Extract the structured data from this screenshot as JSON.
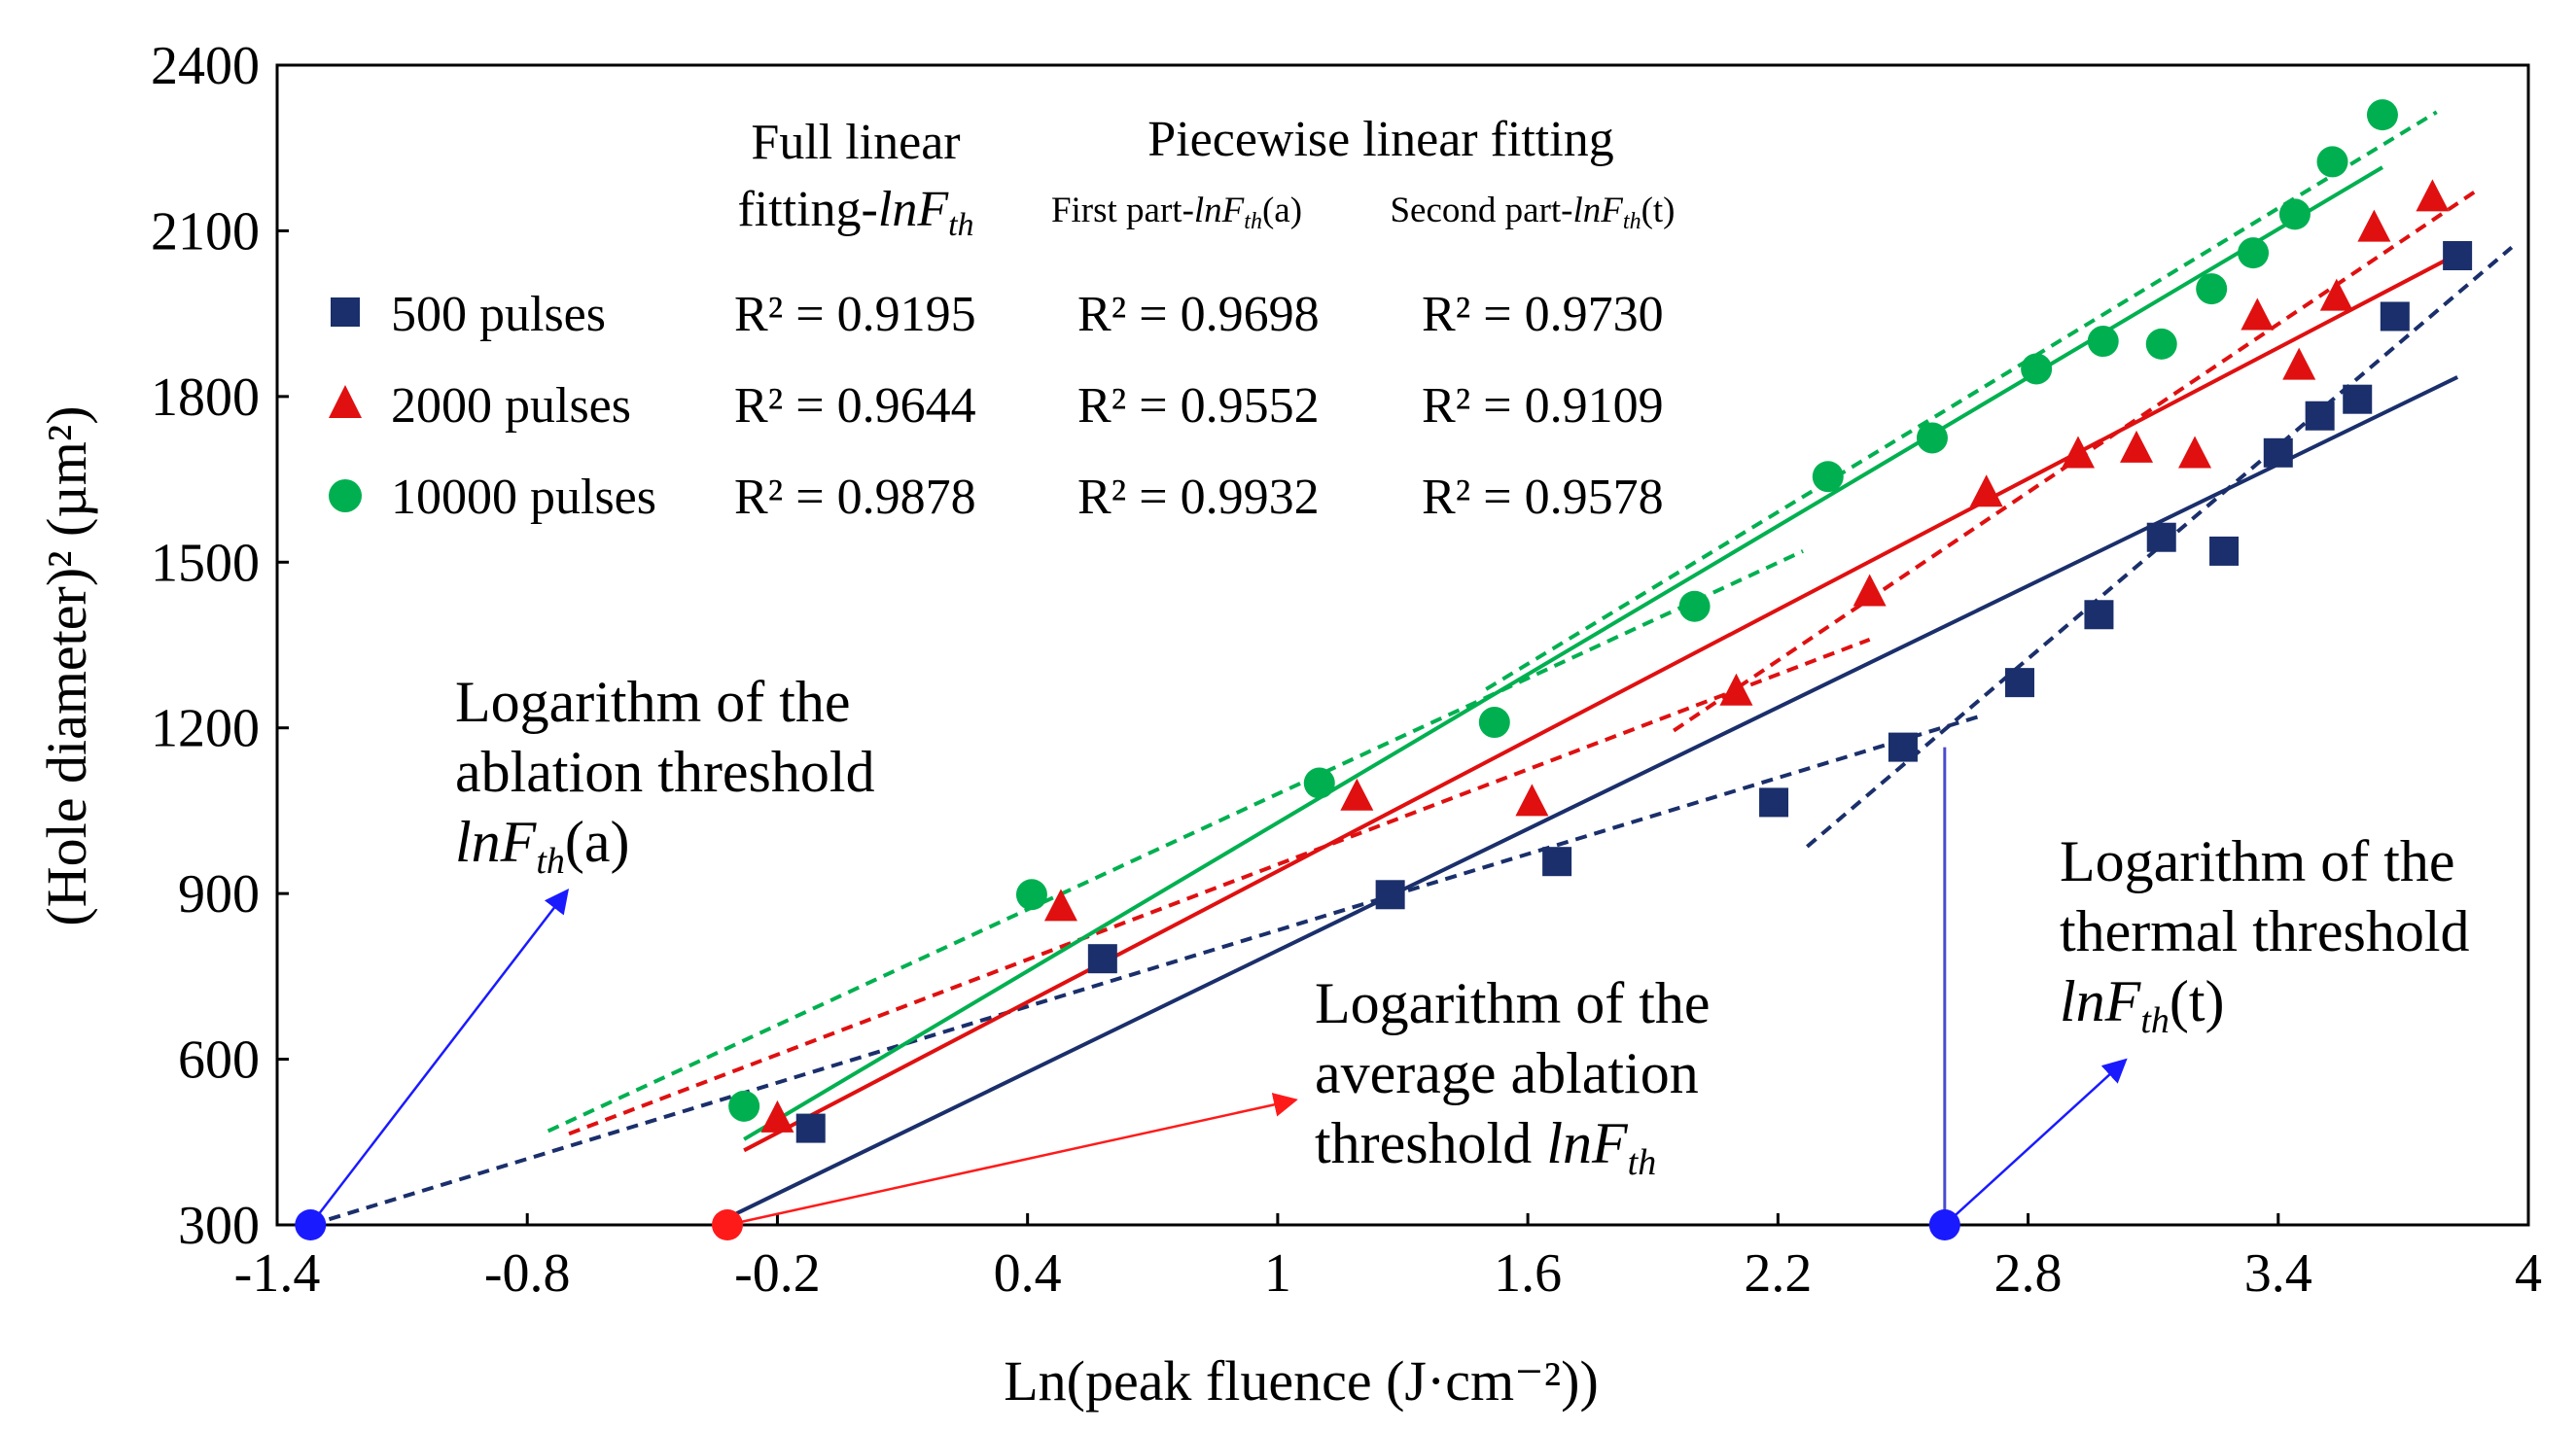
{
  "chart_data": {
    "type": "scatter",
    "title": "",
    "xlabel": "Ln(peak fluence (J·cm⁻²))",
    "ylabel": "(Hole diameter)² (µm²)",
    "xlim": [
      -1.4,
      4.0
    ],
    "ylim": [
      300,
      2400
    ],
    "xticks": [
      "-1.4",
      "-0.8",
      "-0.2",
      "0.4",
      "1",
      "1.6",
      "2.2",
      "2.8",
      "3.4",
      "4"
    ],
    "yticks": [
      "300",
      "600",
      "900",
      "1200",
      "1500",
      "1800",
      "2100",
      "2400"
    ],
    "grid": false,
    "header": {
      "col1_line1": "Full linear",
      "col1_line2_prefix": "fitting-",
      "col1_line2_sym": "lnF",
      "col1_line2_sub": "th",
      "col2": "Piecewise linear fitting",
      "col2a_prefix": "First part-",
      "col2a_sym": "lnF",
      "col2a_sub": "th",
      "col2a_suffix": "(a)",
      "col2b_prefix": "Second part-",
      "col2b_sym": "lnF",
      "col2b_sub": "th",
      "col2b_suffix": "(t)"
    },
    "series": [
      {
        "name": "500 pulses",
        "marker": "square",
        "color": "#1a2f6b",
        "r2_full": "R² = 0.9195",
        "r2_first": "R² = 0.9698",
        "r2_second": "R² = 0.9730",
        "x": [
          -0.12,
          0.58,
          1.27,
          1.67,
          2.19,
          2.5,
          2.78,
          2.97,
          3.12,
          3.27,
          3.4,
          3.5,
          3.59,
          3.68,
          3.83
        ],
        "y": [
          475,
          782,
          898,
          958,
          1065,
          1165,
          1282,
          1405,
          1545,
          1520,
          1698,
          1765,
          1795,
          1945,
          2055
        ],
        "fit_full": [
          [
            -0.3,
            320
          ],
          [
            3.83,
            1835
          ]
        ],
        "fit_first": [
          [
            -1.32,
            300
          ],
          [
            2.68,
            1220
          ]
        ],
        "fit_second": [
          [
            2.27,
            985
          ],
          [
            3.96,
            2070
          ]
        ]
      },
      {
        "name": "2000 pulses",
        "marker": "triangle",
        "color": "#e01010",
        "r2_full": "R² = 0.9644",
        "r2_first": "R² = 0.9552",
        "r2_second": "R² = 0.9109",
        "x": [
          -0.2,
          0.48,
          1.19,
          1.61,
          2.1,
          2.42,
          2.7,
          2.92,
          3.06,
          3.2,
          3.35,
          3.45,
          3.54,
          3.63,
          3.77
        ],
        "y": [
          492,
          875,
          1075,
          1065,
          1265,
          1445,
          1625,
          1695,
          1705,
          1695,
          1945,
          1855,
          1980,
          2105,
          2160
        ],
        "fit_full": [
          [
            -0.28,
            435
          ],
          [
            3.81,
            2050
          ]
        ],
        "fit_first": [
          [
            -0.7,
            465
          ],
          [
            2.42,
            1360
          ]
        ],
        "fit_second": [
          [
            1.95,
            1195
          ],
          [
            3.88,
            2175
          ]
        ]
      },
      {
        "name": "10000 pulses",
        "marker": "circle",
        "color": "#00b050",
        "r2_full": "R² = 0.9878",
        "r2_first": "R² = 0.9932",
        "r2_second": "R² = 0.9578",
        "x": [
          -0.28,
          0.41,
          1.1,
          1.52,
          2.0,
          2.32,
          2.57,
          2.82,
          2.98,
          3.12,
          3.24,
          3.34,
          3.44,
          3.53,
          3.65
        ],
        "y": [
          515,
          898,
          1100,
          1210,
          1420,
          1655,
          1725,
          1850,
          1900,
          1895,
          1995,
          2060,
          2130,
          2225,
          2310
        ],
        "fit_full": [
          [
            -0.28,
            455
          ],
          [
            3.65,
            2215
          ]
        ],
        "fit_first": [
          [
            -0.75,
            470
          ],
          [
            2.26,
            1520
          ]
        ],
        "fit_second": [
          [
            1.5,
            1270
          ],
          [
            3.78,
            2315
          ]
        ]
      }
    ],
    "threshold_points": [
      {
        "name": "lnFth(a)",
        "x": -1.32,
        "y": 300,
        "color": "#1a1aff"
      },
      {
        "name": "lnFth",
        "x": -0.32,
        "y": 300,
        "color": "#ff1a1a"
      },
      {
        "name": "lnFth(t)",
        "x": 2.6,
        "y": 300,
        "color": "#1a1aff"
      }
    ],
    "vertical_line": {
      "x": 2.6,
      "y_from": 300,
      "y_to": 1165,
      "color": "#4b4bd0"
    },
    "annotations": {
      "ablation": {
        "line1": "Logarithm of the",
        "line2": "ablation threshold",
        "sym": "lnF",
        "sub": "th",
        "suffix": "(a)"
      },
      "average": {
        "line1": "Logarithm of the",
        "line2": "average ablation",
        "line3_prefix": "threshold ",
        "sym": "lnF",
        "sub": "th",
        "suffix": ""
      },
      "thermal": {
        "line1": "Logarithm of the",
        "line2": "thermal threshold",
        "sym": "lnF",
        "sub": "th",
        "suffix": "(t)"
      }
    }
  }
}
